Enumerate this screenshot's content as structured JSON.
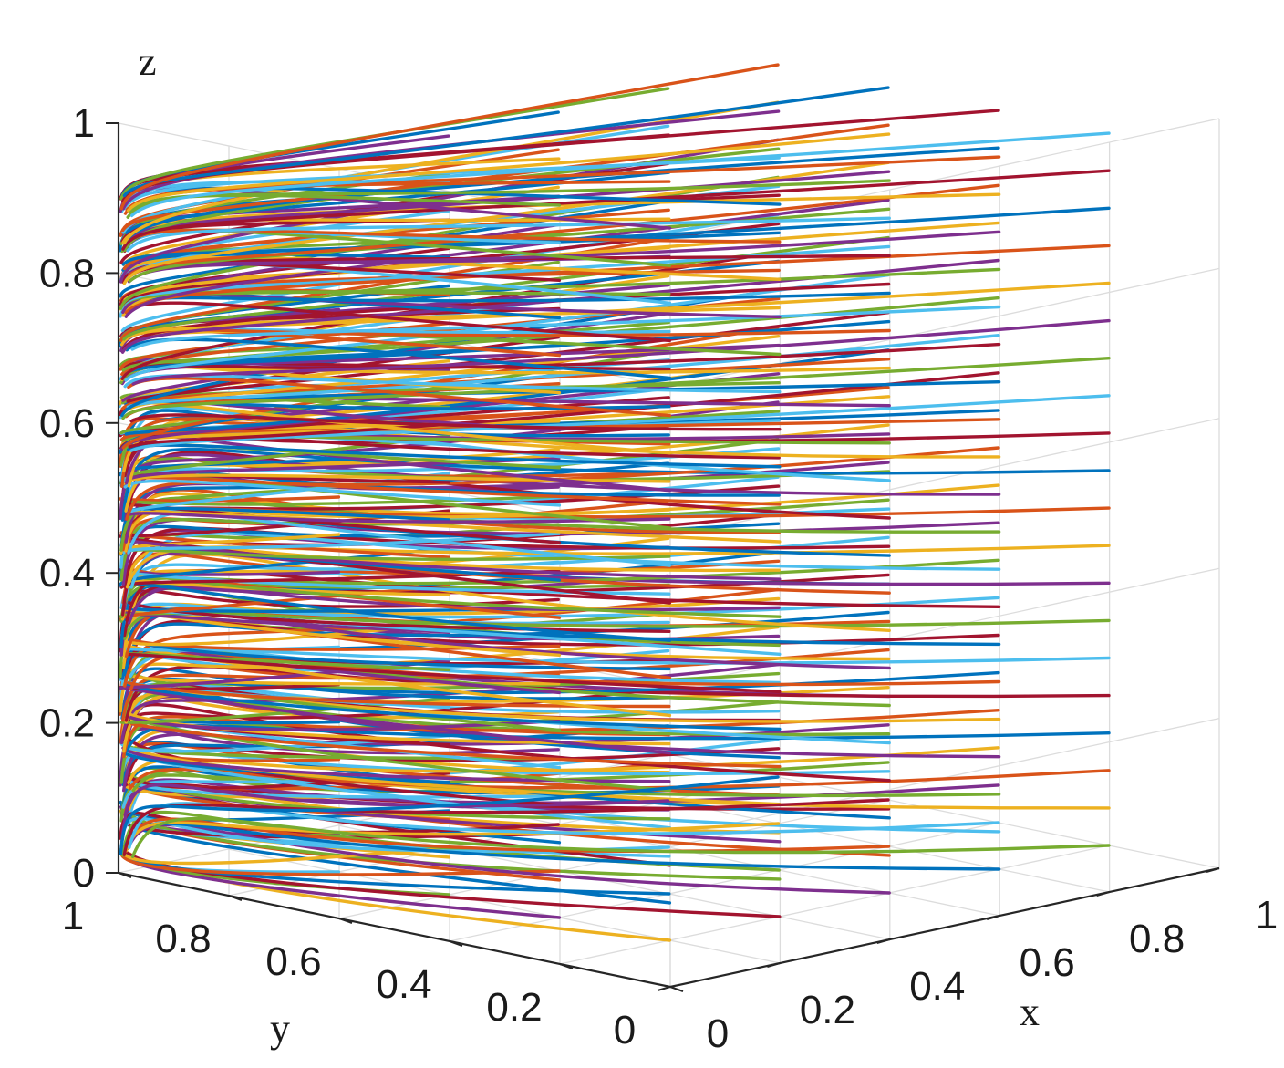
{
  "chart_data": {
    "type": "line",
    "title": "",
    "axes": {
      "x": {
        "label": "x",
        "lim": [
          0,
          1
        ],
        "ticks": [
          "0",
          "0.2",
          "0.4",
          "0.6",
          "0.8",
          "1"
        ]
      },
      "y": {
        "label": "y",
        "lim": [
          0,
          1
        ],
        "ticks": [
          "0",
          "0.2",
          "0.4",
          "0.6",
          "0.8",
          "1"
        ]
      },
      "z": {
        "label": "z",
        "lim": [
          0,
          1
        ],
        "ticks": [
          "0",
          "0.2",
          "0.4",
          "0.6",
          "0.8",
          "1"
        ]
      }
    },
    "grid": true,
    "legend": "none",
    "description_note": "3D evolutionary trajectories: each curve starts from an initial (x, y, z) on a grid and converges toward x = 0, y = 1.",
    "series_colors": [
      "#0072BD",
      "#D95319",
      "#EDB120",
      "#7E2F8E",
      "#77AC30",
      "#4DBEEE",
      "#A2142F"
    ],
    "trajectories": {
      "start_x": [
        0.2,
        0.4,
        0.6,
        0.8,
        1.0
      ],
      "start_y": [
        0.2,
        0.4,
        0.6,
        0.8
      ],
      "start_z": [
        0.05,
        0.1,
        0.15,
        0.2,
        0.25,
        0.3,
        0.35,
        0.4,
        0.45,
        0.5,
        0.55,
        0.6,
        0.65,
        0.7,
        0.75,
        0.8,
        0.85,
        0.9,
        0.95
      ],
      "end": {
        "x": 0,
        "y": 1
      }
    }
  }
}
